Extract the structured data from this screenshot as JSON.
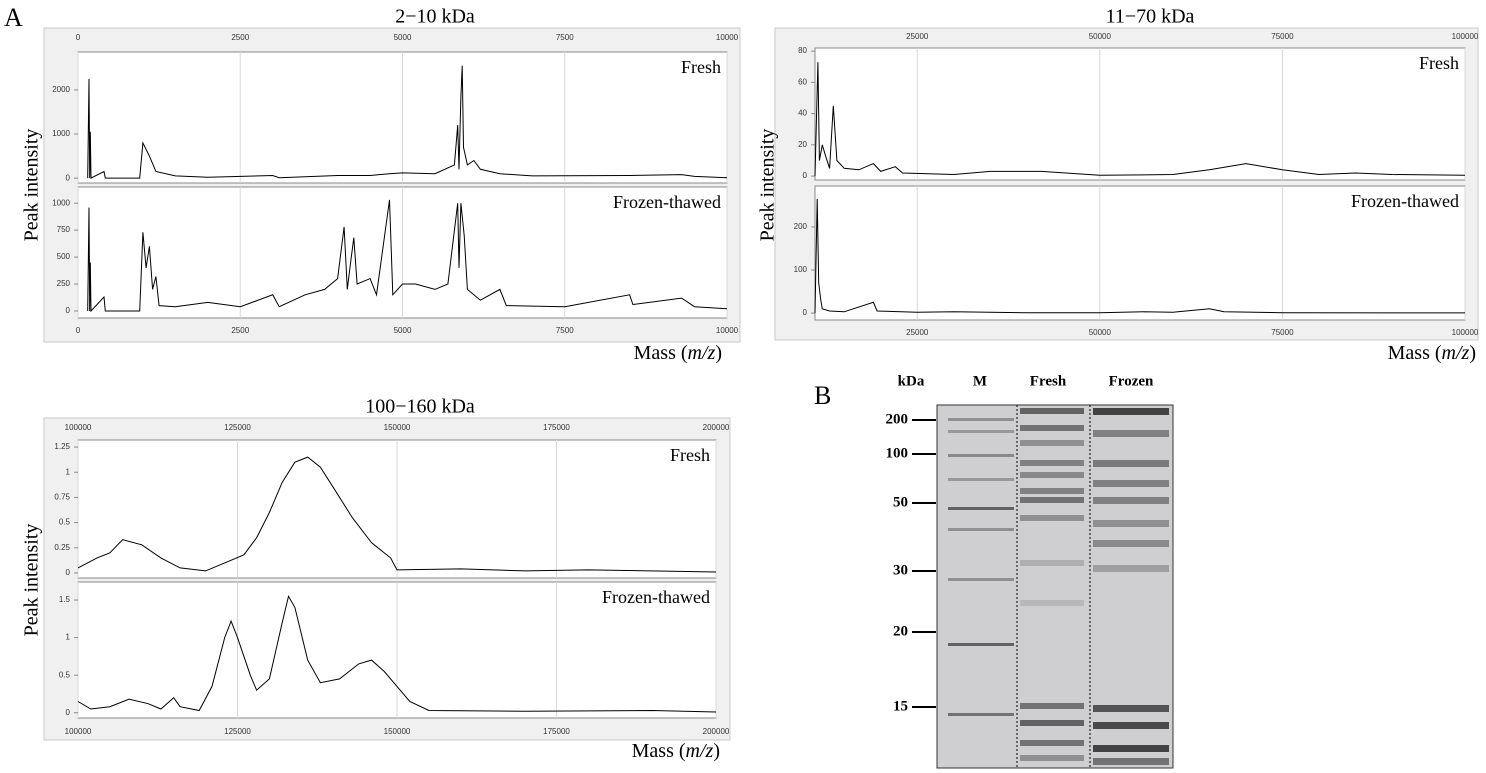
{
  "figure": {
    "panel_labels": [
      "A",
      "B"
    ]
  },
  "chart_data": [
    {
      "type": "line",
      "title": "2−10 kDa",
      "y_label": "Peak intensity",
      "x_label_parts": [
        "Mass (",
        "m/z",
        ")"
      ],
      "xlim": [
        0,
        10000
      ],
      "xticks": [
        0,
        2500,
        5000,
        7500,
        10000
      ],
      "grid": true,
      "panels": [
        {
          "name": "Fresh",
          "color": "#000000",
          "ylim": [
            -110,
            2860
          ],
          "yticks": [
            0,
            1000,
            2000
          ],
          "x": [
            150,
            170,
            180,
            190,
            200,
            400,
            420,
            950,
            1000,
            1100,
            1200,
            1500,
            2000,
            3000,
            3100,
            4000,
            4500,
            4800,
            5000,
            5500,
            5800,
            5850,
            5870,
            5900,
            5920,
            5940,
            6000,
            6100,
            6200,
            6500,
            7000,
            8500,
            9300,
            9500,
            10000
          ],
          "values": [
            0,
            2250,
            0,
            1050,
            0,
            150,
            0,
            0,
            800,
            500,
            150,
            50,
            20,
            60,
            10,
            60,
            60,
            100,
            120,
            100,
            300,
            1200,
            200,
            1850,
            2550,
            700,
            300,
            400,
            200,
            100,
            50,
            60,
            80,
            40,
            10
          ]
        },
        {
          "name": "Frozen-thawed",
          "color": "#000000",
          "ylim": [
            -65,
            1150
          ],
          "yticks": [
            0,
            250,
            500,
            750,
            1000
          ],
          "x": [
            150,
            170,
            180,
            190,
            200,
            400,
            420,
            950,
            1000,
            1050,
            1100,
            1150,
            1200,
            1250,
            1500,
            2000,
            2500,
            3000,
            3100,
            3500,
            3800,
            4000,
            4100,
            4150,
            4200,
            4250,
            4300,
            4500,
            4600,
            4800,
            4850,
            5000,
            5200,
            5500,
            5700,
            5850,
            5870,
            5900,
            5950,
            6000,
            6200,
            6500,
            6600,
            7500,
            8500,
            8550,
            9300,
            9500,
            10000
          ],
          "values": [
            0,
            960,
            0,
            450,
            0,
            130,
            0,
            0,
            730,
            400,
            600,
            200,
            320,
            50,
            40,
            80,
            40,
            150,
            40,
            150,
            200,
            300,
            780,
            200,
            450,
            680,
            250,
            300,
            150,
            1030,
            150,
            250,
            250,
            200,
            250,
            1000,
            400,
            1000,
            700,
            200,
            100,
            200,
            50,
            40,
            150,
            60,
            120,
            40,
            20
          ]
        }
      ]
    },
    {
      "type": "line",
      "title": "11−70 kDa",
      "y_label": "Peak intensity",
      "x_label_parts": [
        "Mass (",
        "m/z",
        ")"
      ],
      "xlim": [
        11000,
        100000
      ],
      "xticks": [
        25000,
        50000,
        75000,
        100000
      ],
      "grid": true,
      "panels": [
        {
          "name": "Fresh",
          "color": "#000000",
          "ylim": [
            -2.5,
            82
          ],
          "yticks": [
            0,
            20,
            40,
            60,
            80
          ],
          "x": [
            11000,
            11400,
            11600,
            12000,
            12500,
            13000,
            13500,
            14000,
            15000,
            17000,
            19000,
            20000,
            22000,
            23000,
            30000,
            35000,
            42000,
            50000,
            60000,
            65000,
            70000,
            75000,
            80000,
            85000,
            90000,
            100000
          ],
          "values": [
            0,
            73,
            10,
            20,
            12,
            5,
            45,
            10,
            5,
            4,
            8,
            3,
            6,
            2,
            1,
            3,
            3,
            0.5,
            1,
            4,
            8,
            4,
            1,
            2,
            1,
            0.5
          ]
        },
        {
          "name": "Frozen-thawed",
          "color": "#000000",
          "ylim": [
            -16,
            295
          ],
          "yticks": [
            0,
            100,
            200
          ],
          "x": [
            11000,
            11300,
            11500,
            11800,
            12000,
            13000,
            15000,
            19000,
            19500,
            25000,
            30000,
            40000,
            50000,
            56000,
            60000,
            65000,
            67000,
            75000,
            100000
          ],
          "values": [
            0,
            265,
            70,
            30,
            10,
            5,
            3,
            25,
            5,
            2,
            3,
            1,
            1,
            3,
            2,
            10,
            3,
            1,
            0.5
          ]
        }
      ]
    },
    {
      "type": "line",
      "title": "100−160 kDa",
      "y_label": "Peak intensity",
      "x_label_parts": [
        "Mass (",
        "m/z",
        ")"
      ],
      "xlim": [
        100000,
        200000
      ],
      "xticks": [
        100000,
        125000,
        150000,
        175000,
        200000
      ],
      "grid": true,
      "panels": [
        {
          "name": "Fresh",
          "color": "#000000",
          "ylim": [
            -0.05,
            1.32
          ],
          "yticks": [
            0,
            0.25,
            0.5,
            0.75,
            1,
            1.25
          ],
          "x": [
            100000,
            103000,
            105000,
            107000,
            110000,
            113000,
            116000,
            120000,
            123000,
            126000,
            128000,
            130000,
            132000,
            134000,
            136000,
            138000,
            140000,
            143000,
            146000,
            149000,
            150000,
            160000,
            170000,
            180000,
            200000
          ],
          "values": [
            0.05,
            0.15,
            0.2,
            0.33,
            0.28,
            0.15,
            0.05,
            0.02,
            0.1,
            0.18,
            0.35,
            0.6,
            0.9,
            1.1,
            1.15,
            1.05,
            0.85,
            0.55,
            0.3,
            0.15,
            0.03,
            0.04,
            0.02,
            0.03,
            0.01
          ]
        },
        {
          "name": "Frozen-thawed",
          "color": "#000000",
          "ylim": [
            -0.07,
            1.74
          ],
          "yticks": [
            0,
            0.5,
            1,
            1.5
          ],
          "x": [
            100000,
            102000,
            105000,
            108000,
            111000,
            113000,
            115000,
            116000,
            119000,
            121000,
            123000,
            124000,
            125000,
            127000,
            128000,
            130000,
            132000,
            133000,
            134000,
            136000,
            138000,
            141000,
            144000,
            146000,
            148000,
            150000,
            152000,
            155000,
            170000,
            190000,
            200000
          ],
          "values": [
            0.15,
            0.05,
            0.08,
            0.18,
            0.12,
            0.05,
            0.2,
            0.08,
            0.03,
            0.35,
            1.0,
            1.22,
            1.0,
            0.5,
            0.3,
            0.45,
            1.2,
            1.55,
            1.4,
            0.7,
            0.4,
            0.45,
            0.65,
            0.7,
            0.55,
            0.35,
            0.15,
            0.03,
            0.02,
            0.03,
            0.01
          ]
        }
      ]
    }
  ],
  "gel": {
    "headers": [
      "kDa",
      "M",
      "Fresh",
      "Frozen"
    ],
    "markers": [
      200,
      100,
      50,
      30,
      20,
      15
    ]
  }
}
